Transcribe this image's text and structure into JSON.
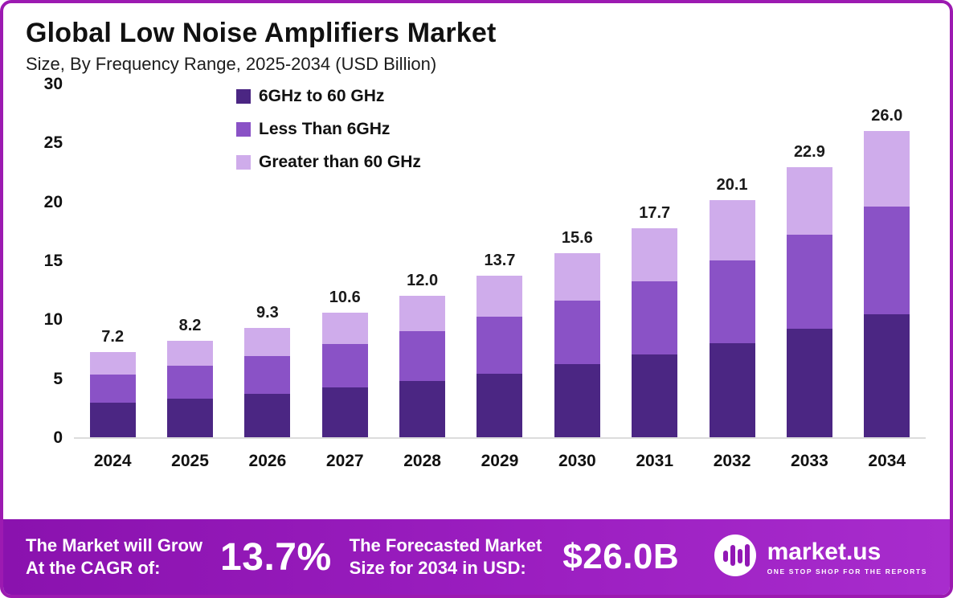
{
  "header": {
    "title": "Global Low Noise Amplifiers Market",
    "subtitle": "Size, By Frequency Range, 2025-2034 (USD Billion)"
  },
  "chart_data": {
    "type": "bar",
    "stacked": true,
    "title": "Global Low Noise Amplifiers Market",
    "subtitle": "Size, By Frequency Range, 2025-2034 (USD Billion)",
    "unit": "USD Billion",
    "categories": [
      "2024",
      "2025",
      "2026",
      "2027",
      "2028",
      "2029",
      "2030",
      "2031",
      "2032",
      "2033",
      "2034"
    ],
    "series": [
      {
        "name": "6GHz to 60 GHz",
        "color": "#4b2683",
        "values": [
          2.9,
          3.3,
          3.7,
          4.2,
          4.8,
          5.4,
          6.2,
          7.0,
          8.0,
          9.2,
          10.4
        ]
      },
      {
        "name": "Less Than 6GHz",
        "color": "#8a52c6",
        "values": [
          2.4,
          2.8,
          3.2,
          3.7,
          4.2,
          4.8,
          5.4,
          6.2,
          7.0,
          8.0,
          9.2
        ]
      },
      {
        "name": "Greater than 60 GHz",
        "color": "#cfaceb",
        "values": [
          1.9,
          2.1,
          2.4,
          2.7,
          3.0,
          3.5,
          4.0,
          4.5,
          5.1,
          5.7,
          6.4
        ]
      }
    ],
    "totals": [
      7.2,
      8.2,
      9.3,
      10.6,
      12.0,
      13.7,
      15.6,
      17.7,
      20.1,
      22.9,
      26.0
    ],
    "total_labels": [
      "7.2",
      "8.2",
      "9.3",
      "10.6",
      "12.0",
      "13.7",
      "15.6",
      "17.7",
      "20.1",
      "22.9",
      "26.0"
    ],
    "ylim": [
      0,
      30
    ],
    "yticks": [
      0,
      5,
      10,
      15,
      20,
      25,
      30
    ],
    "grid": false,
    "legend_position": "inside-top-left"
  },
  "footer": {
    "cagr_label": "The Market will Grow\nAt the CAGR of:",
    "cagr_value": "13.7%",
    "forecast_label": "The Forecasted Market\nSize for 2034 in USD:",
    "forecast_value": "$26.0B",
    "brand": "market.us",
    "brand_tagline": "ONE STOP SHOP FOR THE REPORTS"
  },
  "colors": {
    "border": "#9c1ab1",
    "banner_from": "#8a12ae",
    "banner_to": "#a82ccd",
    "series_dark": "#4b2683",
    "series_medium": "#8a52c6",
    "series_light": "#cfaceb"
  }
}
